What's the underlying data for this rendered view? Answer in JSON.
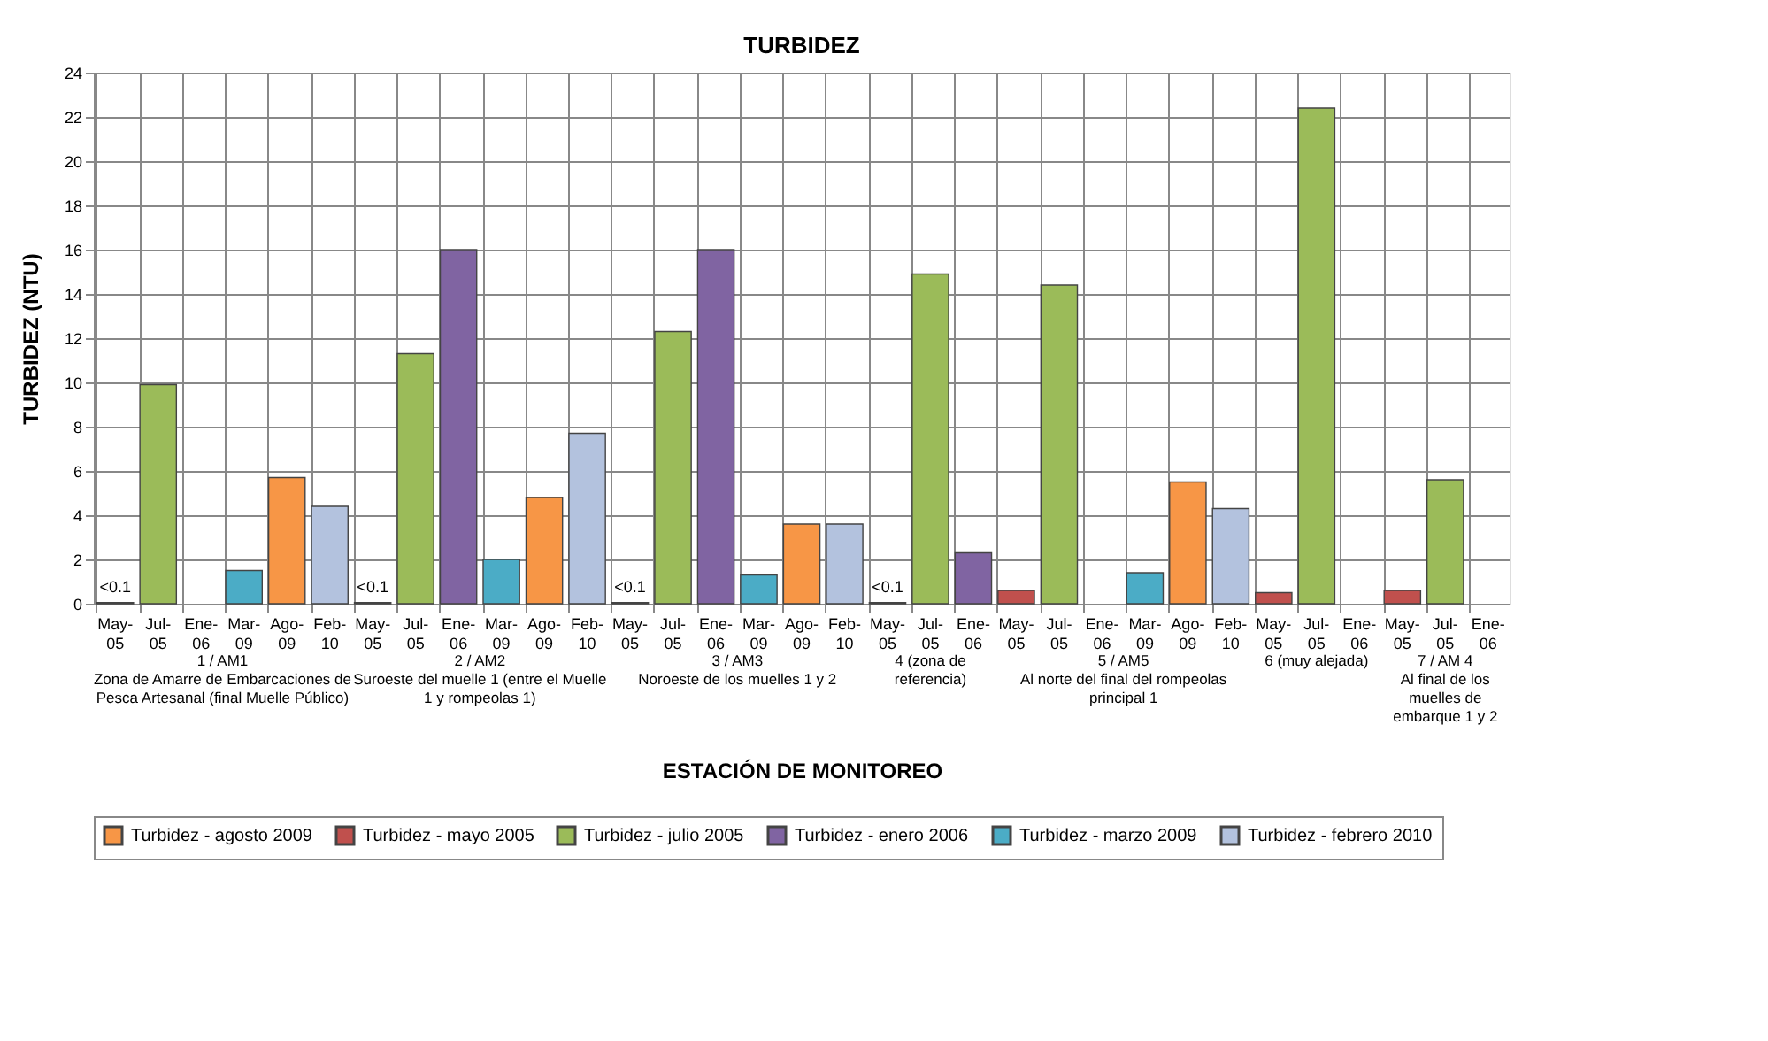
{
  "chart_data": {
    "type": "bar",
    "title": "TURBIDEZ",
    "xlabel": "ESTACIÓN DE MONITOREO",
    "ylabel": "TURBIDEZ (NTU)",
    "categories": [
      "May-05",
      "Jul-05",
      "Ene-06",
      "Mar-09",
      "Ago-09",
      "Feb-10",
      "May-05",
      "Jul-05",
      "Ene-06",
      "Mar-09",
      "Ago-09",
      "Feb-10",
      "May-05",
      "Jul-05",
      "Ene-06",
      "Mar-09",
      "Ago-09",
      "Feb-10",
      "May-05",
      "Jul-05",
      "Ene-06",
      "May-05",
      "Jul-05",
      "Ene-06",
      "Mar-09",
      "Ago-09",
      "Feb-10",
      "May-05",
      "Jul-05",
      "Ene-06",
      "May-05",
      "Jul-05",
      "Ene-06"
    ],
    "series": [
      {
        "name": "Turbidez - agosto 2009",
        "color": "#f79646",
        "values": [
          null,
          null,
          null,
          null,
          5.7,
          null,
          null,
          null,
          null,
          null,
          4.8,
          null,
          null,
          null,
          null,
          null,
          3.6,
          null,
          null,
          null,
          null,
          null,
          null,
          null,
          null,
          5.5,
          null,
          null,
          null,
          null,
          null,
          null,
          null
        ]
      },
      {
        "name": "Turbidez - mayo 2005",
        "color": "#c0504d",
        "values": [
          0.05,
          null,
          null,
          null,
          null,
          null,
          0.05,
          null,
          null,
          null,
          null,
          null,
          0.05,
          null,
          null,
          null,
          null,
          null,
          0.05,
          null,
          null,
          0.6,
          null,
          null,
          null,
          null,
          null,
          0.5,
          null,
          null,
          0.6,
          null,
          null
        ],
        "value_labels": [
          "<0.1",
          null,
          null,
          null,
          null,
          null,
          "<0.1",
          null,
          null,
          null,
          null,
          null,
          "<0.1",
          null,
          null,
          null,
          null,
          null,
          "<0.1",
          null,
          null,
          null,
          null,
          null,
          null,
          null,
          null,
          null,
          null,
          null,
          null,
          null,
          null
        ]
      },
      {
        "name": "Turbidez - julio 2005",
        "color": "#9bbb59",
        "values": [
          null,
          9.9,
          null,
          null,
          null,
          null,
          null,
          11.3,
          null,
          null,
          null,
          null,
          null,
          12.3,
          null,
          null,
          null,
          null,
          null,
          14.9,
          null,
          null,
          14.4,
          null,
          null,
          null,
          null,
          null,
          22.4,
          null,
          null,
          5.6,
          null
        ]
      },
      {
        "name": "Turbidez - enero 2006",
        "color": "#8064a2",
        "values": [
          null,
          null,
          null,
          null,
          null,
          null,
          null,
          null,
          16,
          null,
          null,
          null,
          null,
          null,
          16,
          null,
          null,
          null,
          null,
          null,
          2.3,
          null,
          null,
          null,
          null,
          null,
          null,
          null,
          null,
          null,
          null,
          null,
          null
        ]
      },
      {
        "name": "Turbidez - marzo 2009",
        "color": "#4bacc6",
        "values": [
          null,
          null,
          null,
          1.5,
          null,
          null,
          null,
          null,
          null,
          2.0,
          null,
          null,
          null,
          null,
          null,
          1.3,
          null,
          null,
          null,
          null,
          null,
          null,
          null,
          null,
          1.4,
          null,
          null,
          null,
          null,
          null,
          null,
          null,
          null
        ]
      },
      {
        "name": "Turbidez - febrero 2010",
        "color": "#b3c2de",
        "values": [
          null,
          null,
          null,
          null,
          null,
          4.4,
          null,
          null,
          null,
          null,
          null,
          7.7,
          null,
          null,
          null,
          null,
          null,
          3.6,
          null,
          null,
          null,
          null,
          null,
          null,
          null,
          null,
          4.3,
          null,
          null,
          null,
          null,
          null,
          null
        ]
      }
    ],
    "annotations": [
      "1 / AM1\nZona de Amarre de Embarcaciones de\nPesca Artesanal (final Muelle Público)",
      "2 / AM2\nSuroeste del muelle 1 (entre el Muelle\n1 y rompeolas 1)",
      "3 / AM3\nNoroeste de los muelles 1 y 2",
      "4 (zona de\nreferencia)",
      "5 / AM5\nAl norte del final del rompeolas\nprincipal 1",
      "6 (muy alejada)",
      "7 / AM 4\nAl final de los\nmuelles de\nembarque 1 y 2"
    ],
    "ylim": [
      0,
      24
    ],
    "yticks": [
      0,
      2,
      4,
      6,
      8,
      10,
      12,
      14,
      16,
      18,
      20,
      22,
      24
    ],
    "grid": true,
    "legend": "bottom"
  }
}
